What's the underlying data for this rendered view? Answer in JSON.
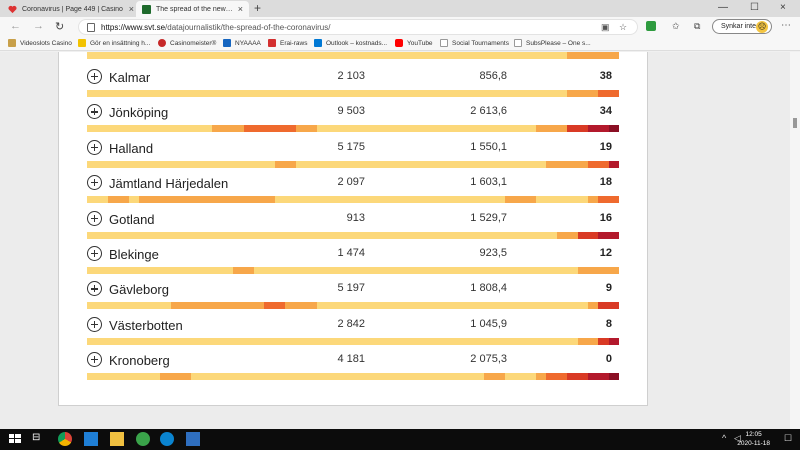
{
  "tabs": [
    {
      "title": "Coronavirus | Page 449 | Casino",
      "close": "×"
    },
    {
      "title": "The spread of the new coronavir",
      "close": "×"
    }
  ],
  "new_tab": "+",
  "window_controls": {
    "minimize": "—",
    "maximize": "☐",
    "close": "×"
  },
  "toolbar": {
    "back": "←",
    "forward": "→",
    "refresh": "↻",
    "url_prefix": "https://www.svt.se",
    "url_path": "/datajournalistik/the-spread-of-the-coronavirus/",
    "sync_label": "Synkar inte",
    "more": "⋯"
  },
  "bookmarks": [
    {
      "label": "Videoslots Casino",
      "color": "#c8a04a"
    },
    {
      "label": "Gör en insättning h...",
      "color": "#f2c200"
    },
    {
      "label": "Casinomeister®",
      "color": "#c62828"
    },
    {
      "label": "NYAAAA",
      "color": "#1565c0"
    },
    {
      "label": "Erai-raws",
      "color": "#d32f2f"
    },
    {
      "label": "Outlook – kostnads...",
      "color": "#0078d4"
    },
    {
      "label": "YouTube",
      "color": "#ff0000"
    },
    {
      "label": "Social Tournaments",
      "color": "#999999"
    },
    {
      "label": "SubsPlease – One s...",
      "color": "#777777"
    }
  ],
  "rows": [
    {
      "name": "Kalmar",
      "cases": "2 103",
      "per100k": "856,8",
      "week": "38",
      "heat": [
        "l",
        "l",
        "l",
        "l",
        "l",
        "l",
        "l",
        "l",
        "l",
        "l",
        "l",
        "l",
        "l",
        "l",
        "l",
        "l",
        "l",
        "l",
        "l",
        "l",
        "l",
        "l",
        "l",
        "l",
        "l",
        "l",
        "l",
        "l",
        "l",
        "l",
        "l",
        "l",
        "l",
        "l",
        "l",
        "l",
        "l",
        "l",
        "l",
        "l",
        "l",
        "l",
        "l",
        "l",
        "l",
        "l",
        "m",
        "m",
        "m",
        "o",
        "o"
      ]
    },
    {
      "name": "Jönköping",
      "cases": "9 503",
      "per100k": "2 613,6",
      "week": "34",
      "heat": [
        "l",
        "l",
        "l",
        "l",
        "l",
        "l",
        "l",
        "l",
        "l",
        "l",
        "l",
        "l",
        "m",
        "m",
        "m",
        "o",
        "o",
        "o",
        "o",
        "o",
        "m",
        "m",
        "l",
        "l",
        "l",
        "l",
        "l",
        "l",
        "l",
        "l",
        "l",
        "l",
        "l",
        "l",
        "l",
        "l",
        "l",
        "l",
        "l",
        "l",
        "l",
        "l",
        "l",
        "m",
        "m",
        "m",
        "r",
        "r",
        "d",
        "d",
        "x"
      ]
    },
    {
      "name": "Halland",
      "cases": "5 175",
      "per100k": "1 550,1",
      "week": "19",
      "heat": [
        "l",
        "l",
        "l",
        "l",
        "l",
        "l",
        "l",
        "l",
        "l",
        "l",
        "l",
        "l",
        "l",
        "l",
        "l",
        "l",
        "l",
        "l",
        "m",
        "m",
        "l",
        "l",
        "l",
        "l",
        "l",
        "l",
        "l",
        "l",
        "l",
        "l",
        "l",
        "l",
        "l",
        "l",
        "l",
        "l",
        "l",
        "l",
        "l",
        "l",
        "l",
        "l",
        "l",
        "l",
        "m",
        "m",
        "m",
        "m",
        "o",
        "o",
        "d"
      ]
    },
    {
      "name": "Jämtland Härjedalen",
      "cases": "2 097",
      "per100k": "1 603,1",
      "week": "18",
      "heat": [
        "l",
        "l",
        "m",
        "m",
        "l",
        "m",
        "m",
        "m",
        "m",
        "m",
        "m",
        "m",
        "m",
        "m",
        "m",
        "m",
        "m",
        "m",
        "l",
        "l",
        "l",
        "l",
        "l",
        "l",
        "l",
        "l",
        "l",
        "l",
        "l",
        "l",
        "l",
        "l",
        "l",
        "l",
        "l",
        "l",
        "l",
        "l",
        "l",
        "l",
        "m",
        "m",
        "m",
        "l",
        "l",
        "l",
        "l",
        "l",
        "m",
        "o",
        "o"
      ]
    },
    {
      "name": "Gotland",
      "cases": "913",
      "per100k": "1 529,7",
      "week": "16",
      "heat": [
        "l",
        "l",
        "l",
        "l",
        "l",
        "l",
        "l",
        "l",
        "l",
        "l",
        "l",
        "l",
        "l",
        "l",
        "l",
        "l",
        "l",
        "l",
        "l",
        "l",
        "l",
        "l",
        "l",
        "l",
        "l",
        "l",
        "l",
        "l",
        "l",
        "l",
        "l",
        "l",
        "l",
        "l",
        "l",
        "l",
        "l",
        "l",
        "l",
        "l",
        "l",
        "l",
        "l",
        "l",
        "l",
        "m",
        "m",
        "r",
        "r",
        "d",
        "d"
      ]
    },
    {
      "name": "Blekinge",
      "cases": "1 474",
      "per100k": "923,5",
      "week": "12",
      "heat": [
        "l",
        "l",
        "l",
        "l",
        "l",
        "l",
        "l",
        "l",
        "l",
        "l",
        "l",
        "l",
        "l",
        "l",
        "m",
        "m",
        "l",
        "l",
        "l",
        "l",
        "l",
        "l",
        "l",
        "l",
        "l",
        "l",
        "l",
        "l",
        "l",
        "l",
        "l",
        "l",
        "l",
        "l",
        "l",
        "l",
        "l",
        "l",
        "l",
        "l",
        "l",
        "l",
        "l",
        "l",
        "l",
        "l",
        "l",
        "m",
        "m",
        "m",
        "m"
      ]
    },
    {
      "name": "Gävleborg",
      "cases": "5 197",
      "per100k": "1 808,4",
      "week": "9",
      "heat": [
        "l",
        "l",
        "l",
        "l",
        "l",
        "l",
        "l",
        "l",
        "m",
        "m",
        "m",
        "m",
        "m",
        "m",
        "m",
        "m",
        "m",
        "o",
        "o",
        "m",
        "m",
        "m",
        "l",
        "l",
        "l",
        "l",
        "l",
        "l",
        "l",
        "l",
        "l",
        "l",
        "l",
        "l",
        "l",
        "l",
        "l",
        "l",
        "l",
        "l",
        "l",
        "l",
        "l",
        "l",
        "l",
        "l",
        "l",
        "l",
        "m",
        "r",
        "r"
      ]
    },
    {
      "name": "Västerbotten",
      "cases": "2 842",
      "per100k": "1 045,9",
      "week": "8",
      "heat": [
        "l",
        "l",
        "l",
        "l",
        "l",
        "l",
        "l",
        "l",
        "l",
        "l",
        "l",
        "l",
        "l",
        "l",
        "l",
        "l",
        "l",
        "l",
        "l",
        "l",
        "l",
        "l",
        "l",
        "l",
        "l",
        "l",
        "l",
        "l",
        "l",
        "l",
        "l",
        "l",
        "l",
        "l",
        "l",
        "l",
        "l",
        "l",
        "l",
        "l",
        "l",
        "l",
        "l",
        "l",
        "l",
        "l",
        "l",
        "m",
        "m",
        "r",
        "d"
      ]
    },
    {
      "name": "Kronoberg",
      "cases": "4 181",
      "per100k": "2 075,3",
      "week": "0",
      "heat": [
        "l",
        "l",
        "l",
        "l",
        "l",
        "l",
        "l",
        "m",
        "m",
        "m",
        "l",
        "l",
        "l",
        "l",
        "l",
        "l",
        "l",
        "l",
        "l",
        "l",
        "l",
        "l",
        "l",
        "l",
        "l",
        "l",
        "l",
        "l",
        "l",
        "l",
        "l",
        "l",
        "l",
        "l",
        "l",
        "l",
        "l",
        "l",
        "m",
        "m",
        "l",
        "l",
        "l",
        "m",
        "o",
        "o",
        "r",
        "r",
        "d",
        "d",
        "x"
      ]
    }
  ],
  "heat_colors": {
    "l": "#fcd87a",
    "m": "#f7a74a",
    "o": "#ef6a2e",
    "r": "#d93a25",
    "d": "#b3192c",
    "x": "#8a0f24"
  },
  "taskbar": {
    "time": "12:05",
    "date": "2020-11-18"
  }
}
